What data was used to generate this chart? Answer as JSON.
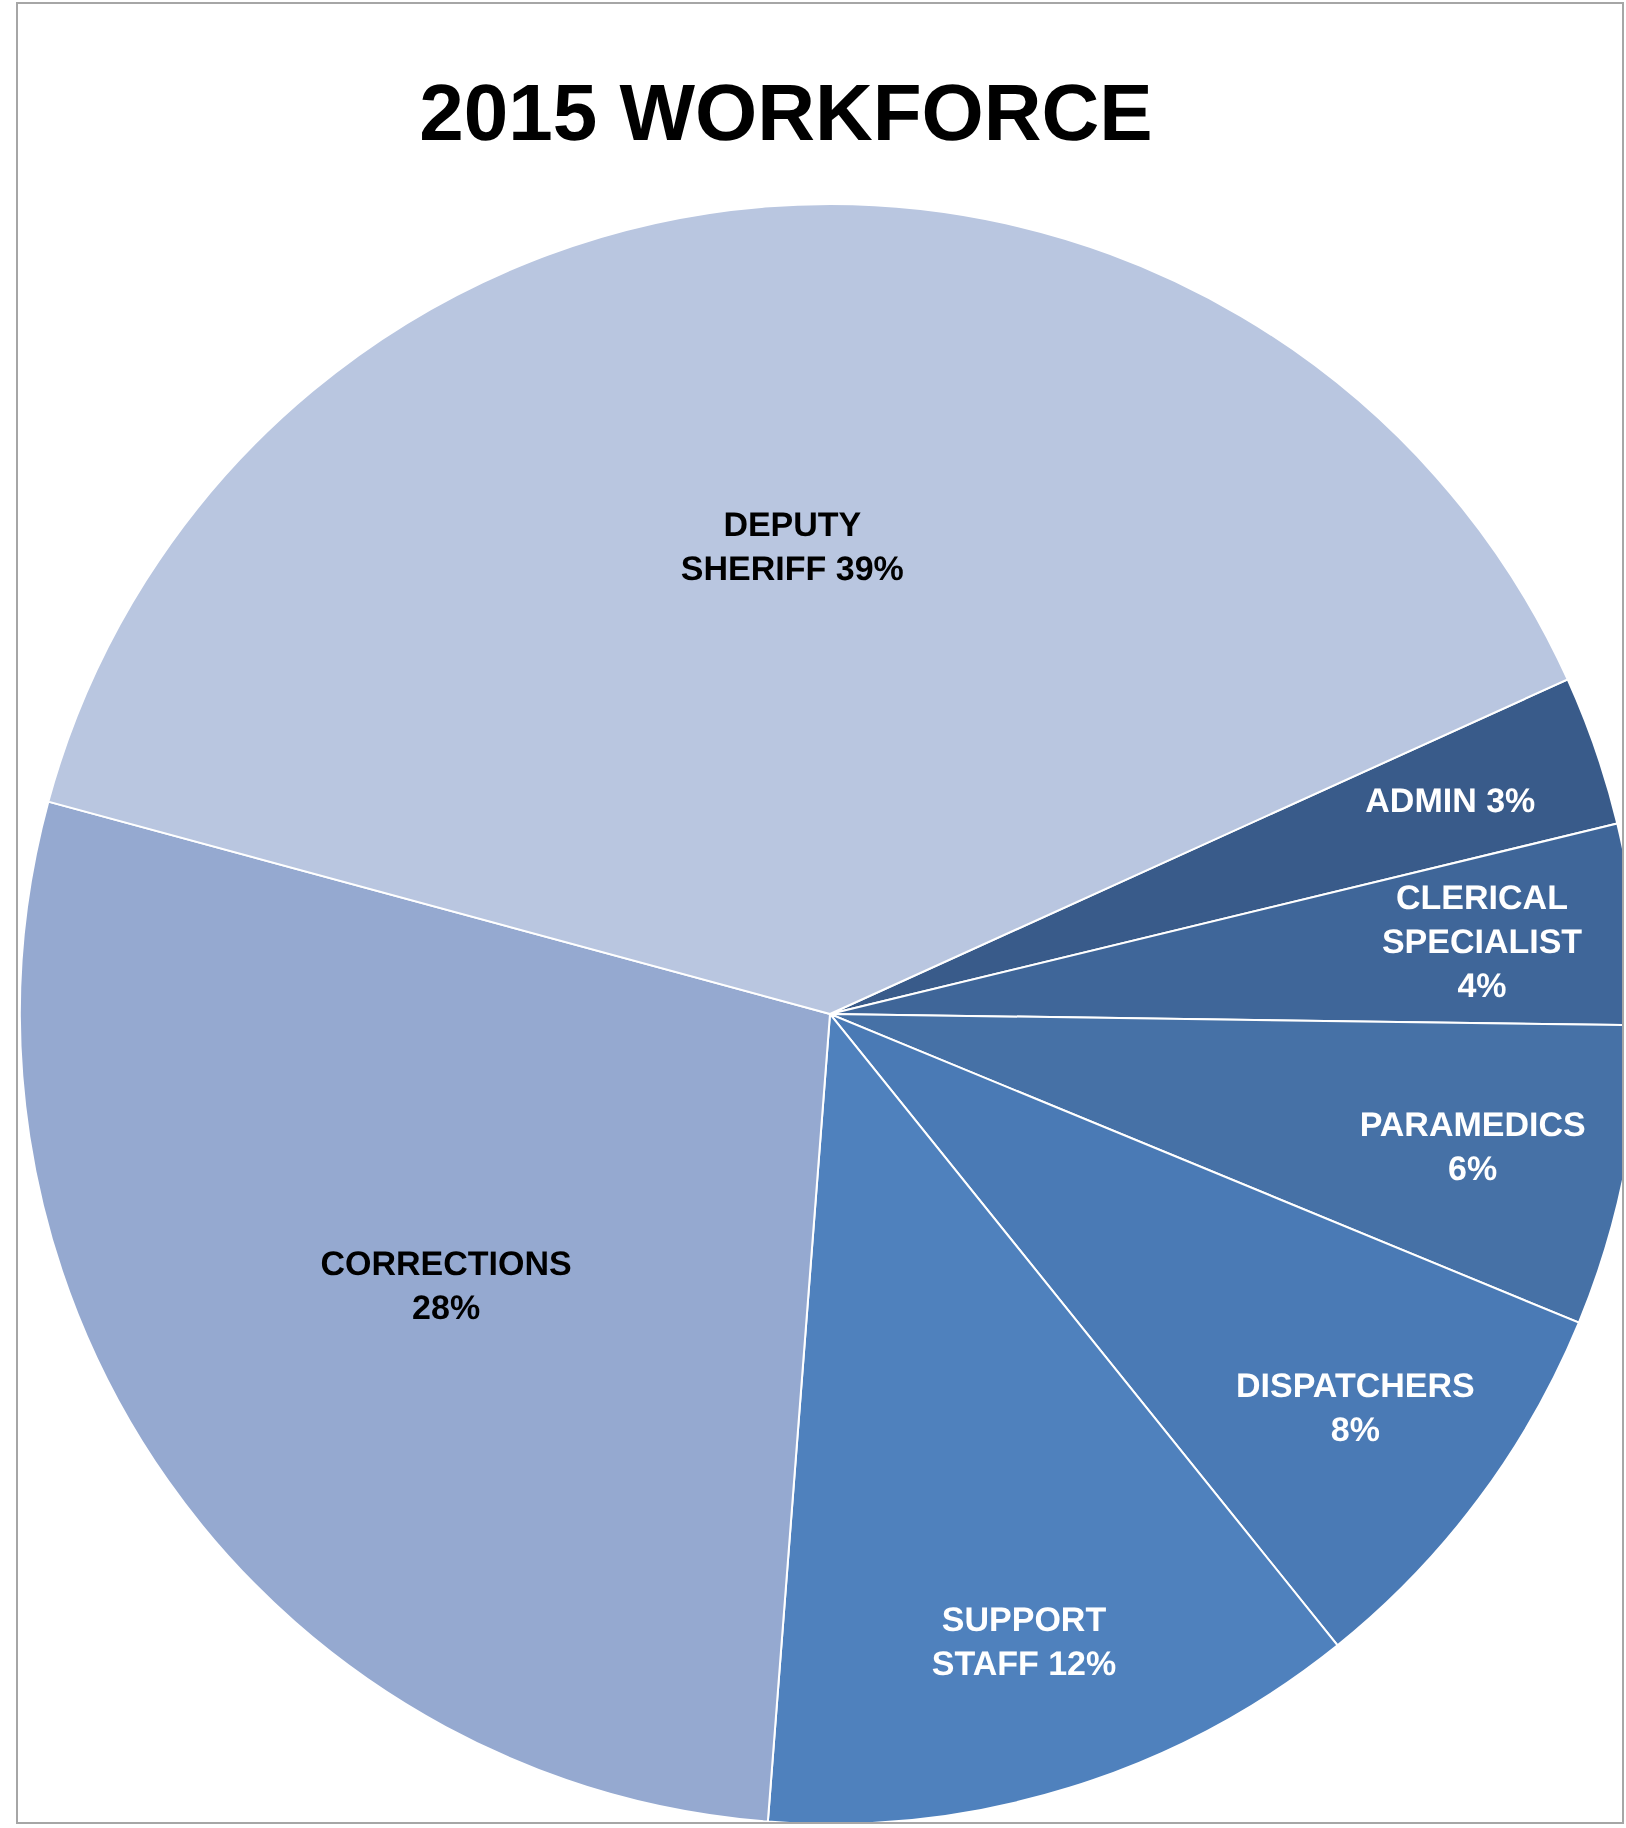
{
  "chart_data": {
    "type": "pie",
    "title": "2015 WORKFORCE",
    "categories": [
      "ADMIN",
      "CLERICAL SPECIALIST",
      "PARAMEDICS",
      "DISPATCHERS",
      "SUPPORT STAFF",
      "CORRECTIONS",
      "DEPUTY SHERIFF"
    ],
    "values": [
      3,
      4,
      6,
      8,
      12,
      28,
      39
    ],
    "colors": [
      "#395b8a",
      "#3f6699",
      "#4671a6",
      "#4a7ab5",
      "#4f81bd",
      "#95a9d0",
      "#b9c6e0"
    ],
    "value_labels": [
      "3%",
      "4%",
      "6%",
      "8%",
      "12%",
      "28%",
      "39%"
    ],
    "legend": false
  }
}
